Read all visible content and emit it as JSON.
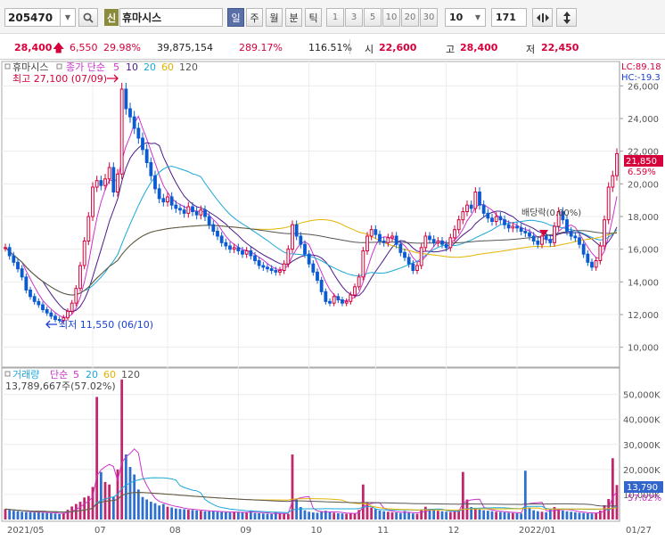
{
  "toolbar": {
    "code": "205470",
    "new_badge": "신",
    "stock_name": "휴마시스",
    "period_tabs": [
      "일",
      "주",
      "월",
      "분",
      "틱"
    ],
    "minute_options": [
      "1",
      "3",
      "5",
      "10",
      "20",
      "30"
    ],
    "unit_value": "10",
    "count_value": "171"
  },
  "infobar": {
    "price": "28,400",
    "change": "6,550",
    "change_pct": "29.98%",
    "volume": "39,875,154",
    "volume_ratio": "289.17%",
    "turnover_ratio": "116.51%",
    "open_label": "시",
    "open": "22,600",
    "high_label": "고",
    "high": "28,400",
    "low_label": "저",
    "low": "22,450"
  },
  "price_chart": {
    "legend_name": "휴마시스",
    "legend_type": "종가 단순",
    "ma_periods": [
      "5",
      "10",
      "20",
      "60",
      "120"
    ],
    "high_note": "최고 27,100 (07/09)",
    "low_note": "최저 11,550 (06/10)",
    "lc_label": "LC:89.18",
    "hc_label": "HC:-19.3",
    "current_tag": "21,850",
    "current_pct": "6.59%",
    "dividend_note": "배당락(0.00%)",
    "y_ticks": [
      "26,000",
      "24,000",
      "22,000",
      "20,000",
      "18,000",
      "16,000",
      "14,000",
      "12,000",
      "10,000"
    ]
  },
  "volume_chart": {
    "legend_name": "거래량",
    "legend_type": "단순",
    "ma_periods": [
      "5",
      "20",
      "60",
      "120"
    ],
    "volume_note": "13,789,667주(57.02%)",
    "y_ticks": [
      "50,000K",
      "40,000K",
      "30,000K",
      "20,000K",
      "10,000K"
    ],
    "current_tag": "13,790",
    "current_pct": "57.02%"
  },
  "x_axis": [
    "2021/05",
    "07",
    "08",
    "09",
    "10",
    "11",
    "12",
    "2022/01",
    "01/27"
  ],
  "colors": {
    "up": "#d6003a",
    "down": "#0a5bd4",
    "ma5": "#cc33cc",
    "ma10": "#4b1a8a",
    "ma20": "#1aa7d9",
    "ma60": "#e3b400",
    "ma120": "#555555",
    "vol": "#c0286e",
    "vol_down": "#2e6fd0"
  },
  "chart_data": {
    "type": "candlestick",
    "x": [
      "2021/05",
      "07",
      "08",
      "09",
      "10",
      "11",
      "12",
      "2022/01",
      "01/27"
    ],
    "price_ylim": [
      9000,
      27000
    ],
    "volume_ylim": [
      0,
      57000
    ],
    "price_series": [
      16100,
      15600,
      15200,
      14800,
      14300,
      13500,
      13100,
      12800,
      12600,
      12300,
      12100,
      11900,
      11700,
      11650,
      11800,
      12200,
      12700,
      13600,
      15000,
      16500,
      18000,
      19800,
      20200,
      19900,
      20300,
      21000,
      19500,
      20600,
      25800,
      24600,
      24100,
      23400,
      22800,
      22100,
      21300,
      20500,
      19700,
      19100,
      18900,
      19200,
      18700,
      18500,
      18400,
      18200,
      18600,
      18300,
      18100,
      18400,
      18000,
      17500,
      17100,
      16800,
      16400,
      16200,
      16000,
      16100,
      15900,
      15700,
      15900,
      15600,
      15300,
      15000,
      14900,
      14800,
      14700,
      14600,
      14700,
      15100,
      16000,
      17500,
      16800,
      16300,
      15700,
      15100,
      14600,
      14100,
      13400,
      12800,
      12700,
      13100,
      12900,
      12700,
      12800,
      13200,
      13700,
      14300,
      15900,
      16800,
      17200,
      16900,
      16500,
      16400,
      16700,
      16800,
      16300,
      15800,
      15500,
      15100,
      14700,
      15000,
      16100,
      16800,
      16600,
      16400,
      16500,
      16300,
      16100,
      16700,
      17200,
      17800,
      18300,
      18700,
      18500,
      19500,
      18700,
      18200,
      17900,
      17700,
      18000,
      17800,
      17500,
      17300,
      17400,
      17300,
      17100,
      17000,
      16800,
      16500,
      16300,
      16800,
      16600,
      16400,
      17400,
      18300,
      17800,
      17100,
      16800,
      16700,
      16300,
      15700,
      15200,
      14900,
      15300,
      16200,
      17800,
      19800,
      20500,
      21850
    ],
    "volume_series": [
      4200,
      3800,
      3500,
      3300,
      3100,
      3000,
      2900,
      2800,
      3300,
      2700,
      2600,
      2500,
      2400,
      2200,
      2600,
      3900,
      5200,
      6200,
      7100,
      8800,
      9400,
      13000,
      49000,
      19000,
      15000,
      14000,
      9000,
      20000,
      56000,
      26000,
      21000,
      18000,
      12000,
      9000,
      8000,
      7100,
      6500,
      5600,
      6200,
      5100,
      4800,
      4400,
      4200,
      4100,
      3900,
      3800,
      3600,
      3500,
      3300,
      3300,
      3200,
      3100,
      3000,
      2900,
      2800,
      3100,
      2900,
      2800,
      2700,
      3600,
      2600,
      2500,
      2400,
      2300,
      2200,
      3000,
      2400,
      2300,
      2200,
      26000,
      8000,
      5000,
      3700,
      3100,
      2800,
      2700,
      3300,
      3500,
      2900,
      2700,
      2500,
      2400,
      2300,
      2600,
      2400,
      3800,
      14000,
      7000,
      4800,
      4100,
      3600,
      3300,
      3100,
      2900,
      2800,
      2600,
      3400,
      2700,
      2400,
      2300,
      4000,
      5100,
      4300,
      3800,
      3500,
      3300,
      3100,
      3000,
      3400,
      3800,
      19000,
      8000,
      5000,
      4500,
      4000,
      3700,
      3500,
      3300,
      3100,
      3000,
      2900,
      2700,
      2600,
      2500,
      2400,
      19500,
      4800,
      3700,
      3300,
      3100,
      2900,
      4000,
      5000,
      4300,
      3600,
      3300,
      3100,
      2900,
      2700,
      2600,
      2500,
      2400,
      2600,
      3600,
      5700,
      8200,
      24500,
      13790
    ]
  }
}
